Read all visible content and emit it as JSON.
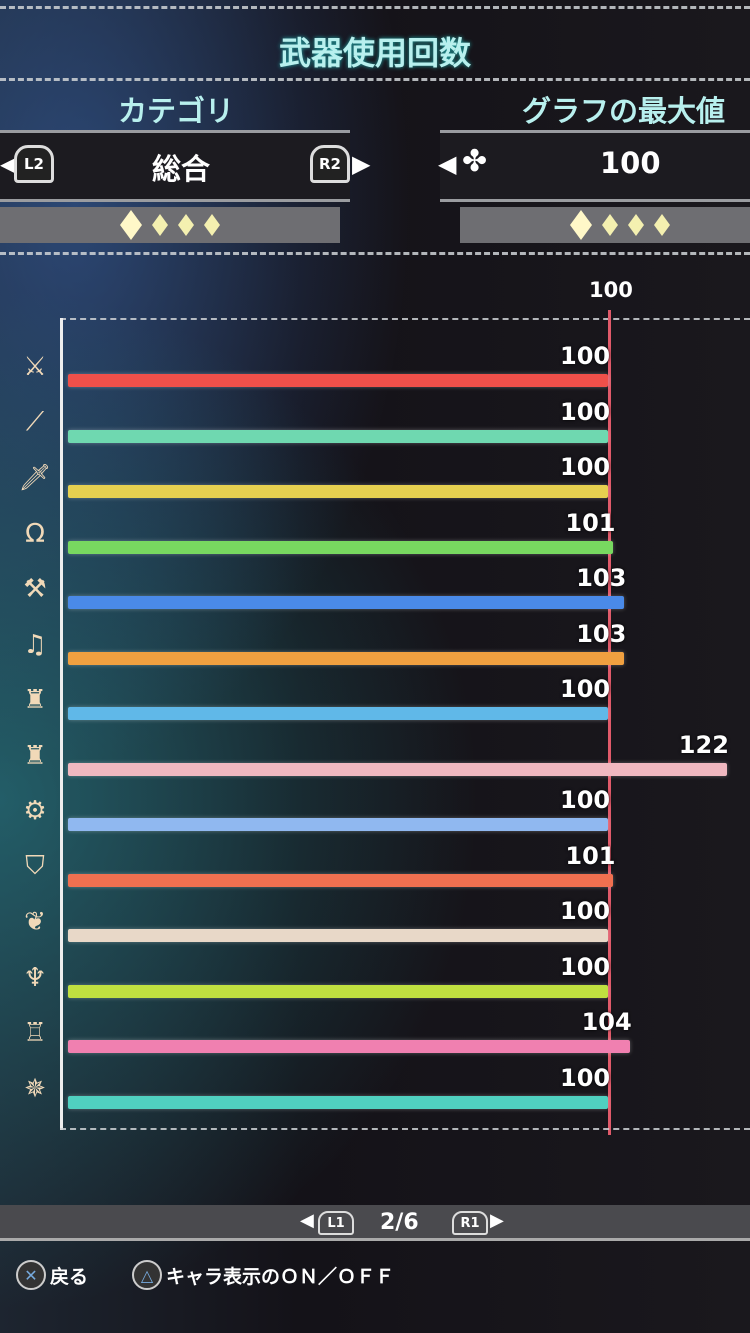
{
  "title": "武器使用回数",
  "category": {
    "label": "カテゴリ",
    "value": "総合",
    "prev_button": "L2",
    "next_button": "R2",
    "page_dots": 4,
    "active_dot": 1
  },
  "graph_max": {
    "label": "グラフの最大値",
    "value": "100",
    "control_icon": "dpad-icon",
    "page_dots": 4,
    "active_dot": 1
  },
  "axis_max_label": "100",
  "bars": [
    {
      "icon": "great-sword-icon",
      "glyph": "⚔",
      "value": 100,
      "color": "#f0504a"
    },
    {
      "icon": "long-sword-icon",
      "glyph": "⟋",
      "value": 100,
      "color": "#6fd8b0"
    },
    {
      "icon": "sword-and-shield-icon",
      "glyph": "🗡",
      "value": 100,
      "color": "#e6d050"
    },
    {
      "icon": "dual-blades-icon",
      "glyph": "Ω",
      "value": 101,
      "color": "#78d860"
    },
    {
      "icon": "hammer-icon",
      "glyph": "⚒",
      "value": 103,
      "color": "#4a8ae8"
    },
    {
      "icon": "hunting-horn-icon",
      "glyph": "♫",
      "value": 103,
      "color": "#f0a040"
    },
    {
      "icon": "lance-icon",
      "glyph": "♜",
      "value": 100,
      "color": "#60b8e8"
    },
    {
      "icon": "gunlance-icon",
      "glyph": "♜",
      "value": 122,
      "color": "#f0b8c0"
    },
    {
      "icon": "switch-axe-icon",
      "glyph": "⚙",
      "value": 100,
      "color": "#90b8f0"
    },
    {
      "icon": "charge-blade-icon",
      "glyph": "⛉",
      "value": 101,
      "color": "#f07050"
    },
    {
      "icon": "insect-glaive-icon",
      "glyph": "❦",
      "value": 100,
      "color": "#e8d8c8"
    },
    {
      "icon": "light-bowgun-icon",
      "glyph": "♆",
      "value": 100,
      "color": "#c0e040"
    },
    {
      "icon": "heavy-bowgun-icon",
      "glyph": "♖",
      "value": 104,
      "color": "#f080b0"
    },
    {
      "icon": "bow-icon",
      "glyph": "✵",
      "value": 100,
      "color": "#50d0c0"
    }
  ],
  "pager": {
    "prev": "L1",
    "text": "2/6",
    "next": "R1"
  },
  "footer": {
    "back": "戻る",
    "back_icon": "cross-button-icon",
    "toggle": "キャラ表示のＯＮ／ＯＦＦ",
    "toggle_icon": "triangle-button-icon"
  }
}
